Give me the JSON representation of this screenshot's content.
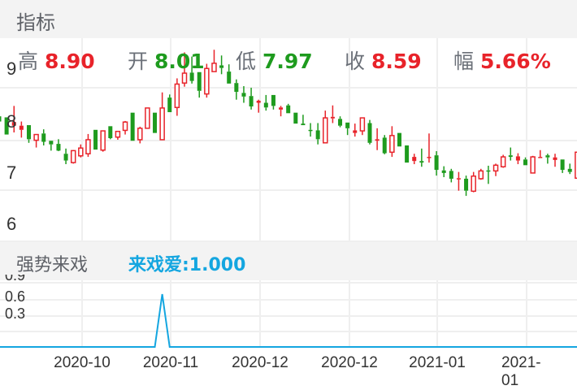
{
  "header": {
    "title": "指标"
  },
  "stats": [
    {
      "label": "高",
      "value": "8.90",
      "color": "#e8232a"
    },
    {
      "label": "开",
      "value": "8.01",
      "color": "#1e9b1e"
    },
    {
      "label": "低",
      "value": "7.97",
      "color": "#1e9b1e"
    },
    {
      "label": "收",
      "value": "8.59",
      "color": "#e8232a"
    },
    {
      "label": "幅",
      "value": "5.66%",
      "color": "#e8232a"
    }
  ],
  "indicator": {
    "title": "强势来戏",
    "value_label": "来戏爱:1.000",
    "color": "#14a6e0"
  },
  "colors": {
    "up": "#e8232a",
    "down": "#1e9b1e",
    "grid": "#efefef",
    "line": "#14a6e0"
  },
  "chart_data": [
    {
      "type": "candlestick",
      "y_ticks": [
        "9",
        "8",
        "7",
        "6"
      ],
      "ylim": [
        5.8,
        9.6
      ],
      "grid": true,
      "ohlc": [
        [
          8.06,
          8.08,
          7.95,
          7.96
        ],
        [
          8.04,
          8.04,
          7.71,
          7.71
        ],
        [
          7.88,
          8.26,
          7.75,
          7.95
        ],
        [
          7.8,
          7.96,
          7.65,
          7.88
        ],
        [
          7.89,
          7.89,
          7.55,
          7.62
        ],
        [
          7.6,
          7.71,
          7.46,
          7.71
        ],
        [
          7.73,
          7.81,
          7.5,
          7.57
        ],
        [
          7.59,
          7.59,
          7.4,
          7.52
        ],
        [
          7.53,
          7.62,
          7.39,
          7.4
        ],
        [
          7.34,
          7.44,
          7.14,
          7.21
        ],
        [
          7.17,
          7.41,
          7.15,
          7.4
        ],
        [
          7.3,
          7.52,
          7.27,
          7.45
        ],
        [
          7.34,
          7.72,
          7.28,
          7.61
        ],
        [
          7.8,
          7.8,
          7.42,
          7.42
        ],
        [
          7.41,
          7.78,
          7.38,
          7.78
        ],
        [
          7.87,
          7.87,
          7.62,
          7.64
        ],
        [
          7.66,
          7.78,
          7.61,
          7.77
        ],
        [
          7.79,
          7.97,
          7.71,
          7.95
        ],
        [
          8.13,
          8.13,
          7.59,
          7.59
        ],
        [
          7.61,
          7.86,
          7.54,
          7.83
        ],
        [
          7.83,
          8.22,
          7.83,
          8.22
        ],
        [
          8.13,
          8.13,
          7.74,
          7.74
        ],
        [
          7.61,
          8.52,
          7.61,
          8.22
        ],
        [
          8.42,
          8.48,
          8.14,
          8.14
        ],
        [
          8.23,
          8.79,
          8.07,
          8.68
        ],
        [
          8.7,
          9.29,
          8.63,
          8.89
        ],
        [
          8.9,
          9.21,
          8.69,
          8.74
        ],
        [
          8.91,
          8.91,
          8.42,
          8.55
        ],
        [
          8.49,
          9.07,
          8.42,
          8.98
        ],
        [
          8.92,
          9.34,
          8.92,
          9.08
        ],
        [
          9.04,
          9.23,
          8.87,
          8.99
        ],
        [
          8.92,
          9.06,
          8.69,
          8.69
        ],
        [
          8.7,
          8.77,
          8.38,
          8.53
        ],
        [
          8.51,
          8.64,
          8.32,
          8.44
        ],
        [
          8.45,
          8.61,
          8.19,
          8.25
        ],
        [
          8.32,
          8.38,
          8.13,
          8.36
        ],
        [
          8.32,
          8.47,
          8.17,
          8.23
        ],
        [
          8.47,
          8.47,
          8.19,
          8.26
        ],
        [
          8.19,
          8.26,
          8.06,
          8.23
        ],
        [
          8.27,
          8.3,
          8.12,
          8.12
        ],
        [
          8.13,
          8.13,
          7.92,
          7.92
        ],
        [
          7.92,
          8.09,
          7.89,
          7.89
        ],
        [
          7.8,
          7.93,
          7.67,
          7.79
        ],
        [
          7.79,
          7.93,
          7.52,
          7.62
        ],
        [
          7.55,
          8.17,
          7.55,
          8.03
        ],
        [
          8.02,
          8.27,
          7.93,
          8.05
        ],
        [
          8.01,
          8.06,
          7.85,
          7.88
        ],
        [
          7.94,
          7.94,
          7.7,
          7.83
        ],
        [
          7.74,
          7.92,
          7.67,
          7.79
        ],
        [
          7.78,
          8.03,
          7.7,
          8.03
        ],
        [
          7.93,
          7.99,
          7.52,
          7.55
        ],
        [
          7.59,
          7.83,
          7.41,
          7.62
        ],
        [
          7.65,
          7.7,
          7.33,
          7.35
        ],
        [
          7.37,
          7.87,
          7.28,
          7.69
        ],
        [
          7.74,
          7.74,
          7.48,
          7.48
        ],
        [
          7.5,
          7.5,
          7.17,
          7.17
        ],
        [
          7.2,
          7.34,
          7.14,
          7.28
        ],
        [
          7.2,
          7.44,
          7.09,
          7.17
        ],
        [
          7.26,
          7.73,
          7.17,
          7.28
        ],
        [
          7.31,
          7.39,
          6.92,
          7.03
        ],
        [
          7.02,
          7.1,
          6.89,
          6.97
        ],
        [
          7.01,
          7.05,
          6.79,
          6.86
        ],
        [
          6.86,
          6.99,
          6.63,
          6.87
        ],
        [
          6.86,
          6.92,
          6.53,
          6.63
        ],
        [
          6.62,
          6.99,
          6.6,
          6.91
        ],
        [
          6.86,
          7.05,
          6.84,
          7.01
        ],
        [
          7.02,
          7.11,
          6.76,
          7.01
        ],
        [
          7.01,
          7.15,
          6.91,
          7.12
        ],
        [
          7.09,
          7.32,
          7.07,
          7.28
        ],
        [
          7.31,
          7.46,
          7.21,
          7.28
        ],
        [
          7.21,
          7.35,
          7.14,
          7.29
        ],
        [
          7.23,
          7.27,
          7.12,
          7.12
        ],
        [
          6.97,
          7.3,
          6.97,
          7.28
        ],
        [
          7.26,
          7.41,
          7.26,
          7.28
        ],
        [
          7.31,
          7.34,
          7.15,
          7.27
        ],
        [
          7.22,
          7.34,
          7.09,
          7.27
        ],
        [
          7.23,
          7.23,
          6.97,
          7.03
        ],
        [
          7.05,
          7.15,
          6.95,
          6.99
        ],
        [
          6.87,
          7.37,
          6.87,
          7.37
        ]
      ],
      "x_ticks": [
        "2020-10",
        "2020-11",
        "2020-12",
        "2020-12",
        "2021-01",
        "2021-01"
      ]
    },
    {
      "type": "line",
      "name": "来戏爱",
      "y_ticks": [
        "0.9",
        "0.6",
        "0.3"
      ],
      "ylim": [
        0,
        1
      ],
      "spike_index": 22,
      "values_note_free": true,
      "values": [
        0,
        0,
        0,
        0,
        0,
        0,
        0,
        0,
        0,
        0,
        0,
        0,
        0,
        0,
        0,
        0,
        0,
        0,
        0,
        0,
        0,
        0,
        1,
        0,
        0,
        0,
        0,
        0,
        0,
        0,
        0,
        0,
        0,
        0,
        0,
        0,
        0,
        0,
        0,
        0,
        0,
        0,
        0,
        0,
        0,
        0,
        0,
        0,
        0,
        0,
        0,
        0,
        0,
        0,
        0,
        0,
        0,
        0,
        0,
        0,
        0,
        0,
        0,
        0,
        0,
        0,
        0,
        0,
        0,
        0,
        0,
        0,
        0,
        0,
        0,
        0,
        0,
        0,
        0
      ]
    }
  ]
}
